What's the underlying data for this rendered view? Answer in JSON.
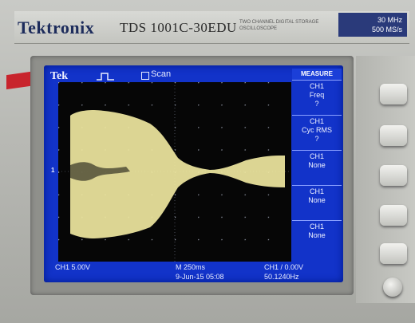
{
  "brand": {
    "logo": "Tektronix",
    "model": "TDS 1001C-30EDU",
    "subtitle": "TWO CHANNEL DIGITAL STORAGE OSCILLOSCOPE",
    "bandwidth": "30 MHz",
    "sample_rate": "500 MS/s"
  },
  "screen": {
    "tek_label": "Tek",
    "acq_mode": "Scan",
    "trigger_level_marker": "1"
  },
  "menu": {
    "title": "MEASURE",
    "items": [
      {
        "line1": "CH1",
        "line2": "Freq",
        "line3": "?"
      },
      {
        "line1": "CH1",
        "line2": "Cyc RMS",
        "line3": "?"
      },
      {
        "line1": "CH1",
        "line2": "None",
        "line3": ""
      },
      {
        "line1": "CH1",
        "line2": "None",
        "line3": ""
      },
      {
        "line1": "CH1",
        "line2": "None",
        "line3": ""
      }
    ]
  },
  "status": {
    "ch1_scale": "CH1 5.00V",
    "timebase": "M 250ms",
    "date_time": "9-Jun-15 05:08",
    "trigger": "CH1 / 0.00V",
    "frequency": "50.1240Hz"
  },
  "colors": {
    "screen_bg": "#1233c9",
    "trace": "#f0eaa0"
  }
}
